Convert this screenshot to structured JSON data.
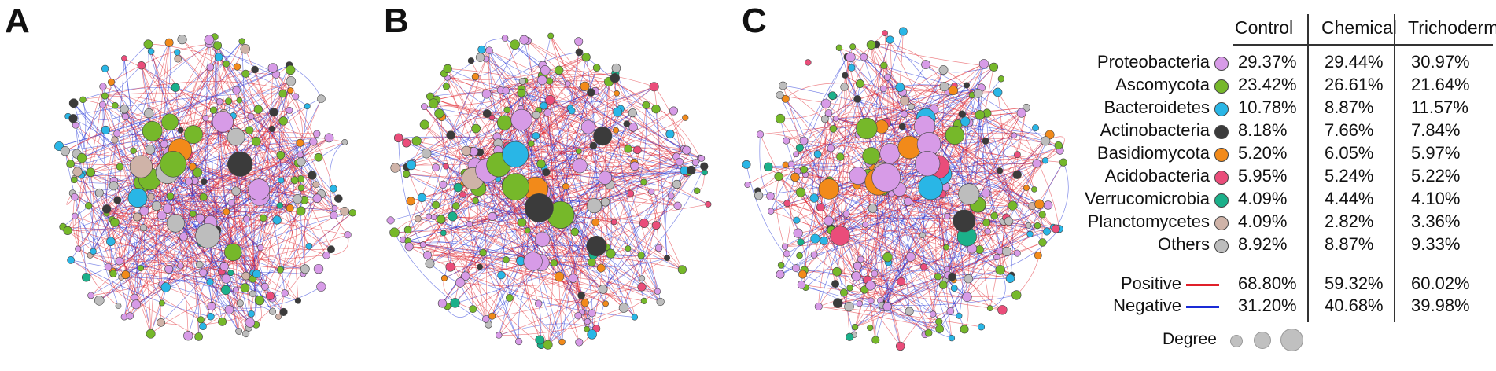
{
  "panels": [
    {
      "letter": "A"
    },
    {
      "letter": "B"
    },
    {
      "letter": "C"
    }
  ],
  "legend": {
    "columns": [
      "Control",
      "Chemical",
      "Trichoderma"
    ],
    "taxa": [
      {
        "name": "Proteobacteria",
        "color": "#d79be7",
        "values": [
          "29.37%",
          "29.44%",
          "30.97%"
        ]
      },
      {
        "name": "Ascomycota",
        "color": "#76b82a",
        "values": [
          "23.42%",
          "26.61%",
          "21.64%"
        ]
      },
      {
        "name": "Bacteroidetes",
        "color": "#29b6e6",
        "values": [
          "10.78%",
          "8.87%",
          "11.57%"
        ]
      },
      {
        "name": "Actinobacteria",
        "color": "#3b3b3b",
        "values": [
          "8.18%",
          "7.66%",
          "7.84%"
        ]
      },
      {
        "name": "Basidiomycota",
        "color": "#f28a1a",
        "values": [
          "5.20%",
          "6.05%",
          "5.97%"
        ]
      },
      {
        "name": "Acidobacteria",
        "color": "#ea4d7a",
        "values": [
          "5.95%",
          "5.24%",
          "5.22%"
        ]
      },
      {
        "name": "Verrucomicrobia",
        "color": "#1bb08a",
        "values": [
          "4.09%",
          "4.44%",
          "4.10%"
        ]
      },
      {
        "name": "Planctomycetes",
        "color": "#cfb3a8",
        "values": [
          "4.09%",
          "2.82%",
          "3.36%"
        ]
      },
      {
        "name": "Others",
        "color": "#bdbdbd",
        "values": [
          "8.92%",
          "8.87%",
          "9.33%"
        ]
      }
    ],
    "edges": [
      {
        "name": "Positive",
        "color": "#e0202a",
        "values": [
          "68.80%",
          "59.32%",
          "60.02%"
        ]
      },
      {
        "name": "Negative",
        "color": "#1a2bd6",
        "values": [
          "31.20%",
          "40.68%",
          "39.98%"
        ]
      }
    ],
    "degree_label": "Degree"
  }
}
